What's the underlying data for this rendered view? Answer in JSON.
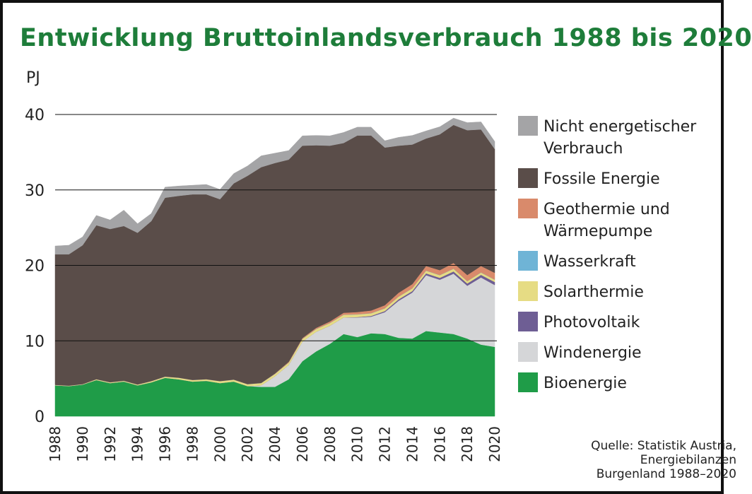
{
  "chart_data": {
    "type": "area",
    "title": "Entwicklung Bruttoinlandsverbrauch 1988 bis 2020",
    "ylabel": "PJ",
    "ylim": [
      0,
      40
    ],
    "yticks": [
      "0",
      "10",
      "20",
      "30",
      "40"
    ],
    "xtick_labels": [
      "1988",
      "1990",
      "1992",
      "1994",
      "1996",
      "1998",
      "2000",
      "2002",
      "2004",
      "2006",
      "2008",
      "2010",
      "2012",
      "2014",
      "2016",
      "2018",
      "2020"
    ],
    "x": [
      1988,
      1989,
      1990,
      1991,
      1992,
      1993,
      1994,
      1995,
      1996,
      1997,
      1998,
      1999,
      2000,
      2001,
      2002,
      2003,
      2004,
      2005,
      2006,
      2007,
      2008,
      2009,
      2010,
      2011,
      2012,
      2013,
      2014,
      2015,
      2016,
      2017,
      2018,
      2019,
      2020
    ],
    "grid": true,
    "legend_position": "right",
    "series": [
      {
        "name": "Bioenergie",
        "color": "#1f9c48",
        "values": [
          4.1,
          4.0,
          4.2,
          4.8,
          4.4,
          4.6,
          4.1,
          4.5,
          5.1,
          4.9,
          4.6,
          4.7,
          4.4,
          4.6,
          4.0,
          3.9,
          3.9,
          4.9,
          7.3,
          8.6,
          9.6,
          10.9,
          10.5,
          11.0,
          10.9,
          10.4,
          10.3,
          11.3,
          11.1,
          10.9,
          10.3,
          9.5,
          9.2
        ]
      },
      {
        "name": "Windenergie",
        "color": "#d5d6d8",
        "values": [
          0,
          0,
          0,
          0,
          0,
          0,
          0,
          0,
          0,
          0,
          0,
          0,
          0,
          0,
          0,
          0.2,
          1.4,
          1.9,
          2.6,
          2.6,
          2.4,
          2.2,
          2.6,
          2.2,
          2.9,
          4.9,
          6.1,
          7.4,
          7.0,
          8.0,
          7.0,
          8.9,
          8.2
        ]
      },
      {
        "name": "Photovoltaik",
        "color": "#6e5e94",
        "values": [
          0,
          0,
          0,
          0,
          0,
          0,
          0,
          0,
          0,
          0,
          0,
          0,
          0,
          0,
          0,
          0,
          0,
          0,
          0,
          0,
          0,
          0,
          0.05,
          0.1,
          0.15,
          0.2,
          0.2,
          0.25,
          0.25,
          0.3,
          0.3,
          0.35,
          0.4
        ]
      },
      {
        "name": "Solarthermie",
        "color": "#e6dc84",
        "values": [
          0.05,
          0.05,
          0.05,
          0.1,
          0.1,
          0.1,
          0.1,
          0.15,
          0.15,
          0.2,
          0.2,
          0.2,
          0.25,
          0.25,
          0.25,
          0.3,
          0.3,
          0.3,
          0.35,
          0.35,
          0.35,
          0.35,
          0.35,
          0.35,
          0.35,
          0.35,
          0.35,
          0.35,
          0.35,
          0.35,
          0.3,
          0.3,
          0.3
        ]
      },
      {
        "name": "Wasserkraft",
        "color": "#6fb4d6",
        "values": [
          0.02,
          0.02,
          0.02,
          0.02,
          0.02,
          0.02,
          0.02,
          0.02,
          0.02,
          0.02,
          0.02,
          0.02,
          0.02,
          0.02,
          0.02,
          0.02,
          0.02,
          0.02,
          0.02,
          0.02,
          0.02,
          0.02,
          0.02,
          0.02,
          0.02,
          0.02,
          0.02,
          0.02,
          0.02,
          0.02,
          0.02,
          0.02,
          0.02
        ]
      },
      {
        "name": "Geothermie und Wärmepumpe",
        "color": "#d98a6b",
        "values": [
          0,
          0,
          0,
          0,
          0,
          0,
          0,
          0,
          0,
          0,
          0,
          0,
          0,
          0,
          0,
          0,
          0.05,
          0.1,
          0.1,
          0.15,
          0.2,
          0.25,
          0.3,
          0.35,
          0.4,
          0.5,
          0.55,
          0.6,
          0.65,
          0.75,
          0.8,
          0.85,
          0.9
        ]
      },
      {
        "name": "Fossile Energie",
        "color": "#5a4d49",
        "values": [
          17.3,
          17.4,
          18.4,
          20.4,
          20.3,
          20.5,
          20.1,
          21.2,
          23.7,
          24.1,
          24.6,
          24.5,
          24.1,
          26.0,
          27.6,
          28.6,
          27.9,
          26.8,
          25.5,
          24.2,
          23.3,
          22.5,
          23.4,
          23.2,
          20.9,
          19.5,
          18.5,
          16.9,
          18.0,
          18.3,
          19.2,
          18.1,
          16.4
        ]
      },
      {
        "name": "Nicht energetischer Verbrauch",
        "color": "#a4a4a6",
        "values": [
          1.1,
          1.2,
          1.1,
          1.3,
          1.2,
          2.1,
          1.2,
          1.0,
          1.4,
          1.3,
          1.2,
          1.3,
          1.3,
          1.3,
          1.3,
          1.5,
          1.3,
          1.2,
          1.3,
          1.3,
          1.3,
          1.4,
          1.1,
          1.1,
          0.9,
          1.1,
          1.2,
          1.0,
          1.0,
          0.9,
          1.0,
          1.0,
          1.0
        ]
      }
    ]
  },
  "legend": [
    {
      "label_lines": [
        "Nicht energetischer",
        "Verbrauch"
      ],
      "color": "#a4a4a6",
      "icon": "swatch"
    },
    {
      "label_lines": [
        "Fossile Energie"
      ],
      "color": "#5a4d49",
      "icon": "swatch"
    },
    {
      "label_lines": [
        "Geothermie und",
        "Wärmepumpe"
      ],
      "color": "#d98a6b",
      "icon": "swatch"
    },
    {
      "label_lines": [
        "Wasserkraft"
      ],
      "color": "#6fb4d6",
      "icon": "swatch"
    },
    {
      "label_lines": [
        "Solarthermie"
      ],
      "color": "#e6dc84",
      "icon": "swatch"
    },
    {
      "label_lines": [
        "Photovoltaik"
      ],
      "color": "#6e5e94",
      "icon": "swatch"
    },
    {
      "label_lines": [
        "Windenergie"
      ],
      "color": "#d5d6d8",
      "icon": "swatch"
    },
    {
      "label_lines": [
        "Bioenergie"
      ],
      "color": "#1f9c48",
      "icon": "swatch"
    }
  ],
  "source": {
    "line1": "Quelle: Statistik Austria,",
    "line2": "Energiebilanzen",
    "line3": "Burgenland 1988–2020"
  },
  "colors": {
    "title": "#1e7d3a",
    "frame": "#111111"
  }
}
